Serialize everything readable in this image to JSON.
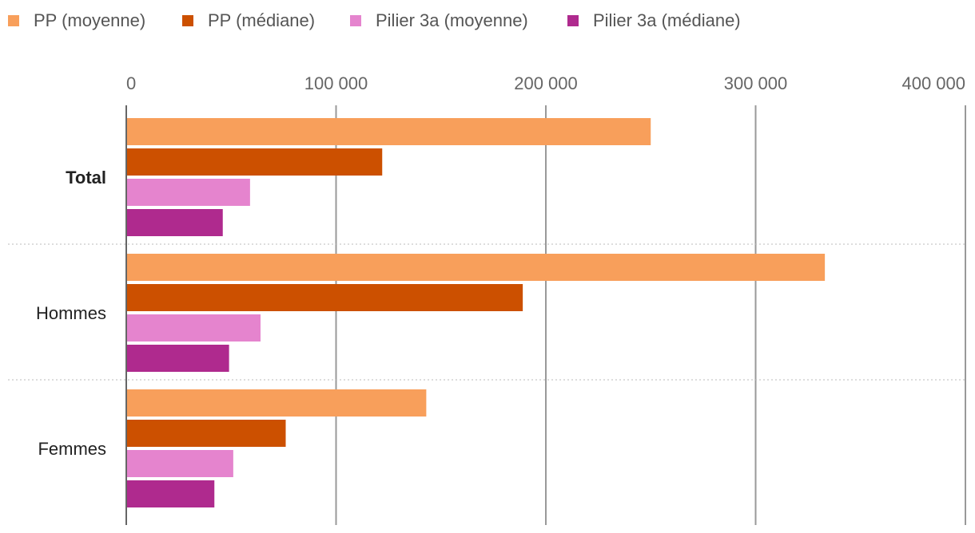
{
  "chart_data": {
    "type": "bar",
    "orientation": "horizontal",
    "categories": [
      "Total",
      "Hommes",
      "Femmes"
    ],
    "highlighted_category": "Total",
    "series": [
      {
        "name": "PP (moyenne)",
        "color": "#F89F5B",
        "values": [
          250000,
          333000,
          143000
        ]
      },
      {
        "name": "PP (médiane)",
        "color": "#CC5000",
        "values": [
          122000,
          189000,
          76000
        ]
      },
      {
        "name": "Pilier 3a (moyenne)",
        "color": "#E584CE",
        "values": [
          59000,
          64000,
          51000
        ]
      },
      {
        "name": "Pilier 3a (médiane)",
        "color": "#AF2A8E",
        "values": [
          46000,
          49000,
          42000
        ]
      }
    ],
    "xlim": [
      0,
      400000
    ],
    "xticks": [
      0,
      100000,
      200000,
      300000,
      400000
    ],
    "xtick_labels": [
      "0",
      "100 000",
      "200 000",
      "300 000",
      "400 000"
    ],
    "axis_position": "top",
    "legend_position": "top-left",
    "grid": true,
    "category_separator": "dotted"
  }
}
